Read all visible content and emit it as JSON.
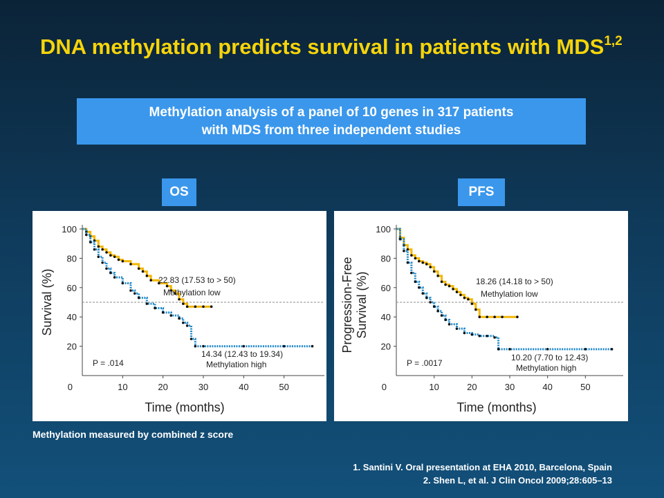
{
  "slide": {
    "title": "DNA methylation predicts survival in patients with MDS",
    "title_superscript": "1,2",
    "banner_line1": "Methylation analysis of a panel of 10 genes in 317 patients",
    "banner_line2": "with MDS from three independent studies",
    "note": "Methylation measured by combined z score",
    "ref1": "1. Santini V. Oral presentation at EHA 2010, Barcelona, Spain",
    "ref2": "2. Shen L, et al. J Clin Oncol 2009;28:605–13",
    "colors": {
      "title": "#f6d40a",
      "accent_box": "#3a97ec",
      "low": "#f2b705",
      "high": "#1e88c8"
    }
  },
  "chart_data": [
    {
      "type": "line",
      "panel_label": "OS",
      "xlabel": "Time (months)",
      "ylabel": "Survival (%)",
      "xlim": [
        0,
        58
      ],
      "ylim": [
        0,
        100
      ],
      "xticks": [
        0,
        10,
        20,
        30,
        40,
        50
      ],
      "yticks": [
        20,
        40,
        60,
        80,
        100
      ],
      "reference_line": 50,
      "p_value": "P = .014",
      "series": [
        {
          "name": "Methylation low",
          "median_label": "22.83 (17.53 to > 50)",
          "color": "#f2b705",
          "x": [
            0,
            1,
            2,
            3,
            4,
            5,
            6,
            7,
            8,
            9,
            10,
            12,
            14,
            15,
            16,
            17,
            19,
            21,
            22,
            23,
            24,
            25,
            26,
            28,
            30,
            32
          ],
          "y": [
            100,
            98,
            95,
            92,
            88,
            86,
            84,
            82,
            81,
            79,
            78,
            76,
            73,
            71,
            68,
            65,
            63,
            61,
            58,
            56,
            52,
            49,
            47,
            47,
            47,
            47
          ]
        },
        {
          "name": "Methylation high",
          "median_label": "14.34 (12.43 to 19.34)",
          "color": "#1e88c8",
          "x": [
            0,
            1,
            2,
            3,
            4,
            5,
            6,
            7,
            8,
            10,
            12,
            13,
            14,
            16,
            18,
            20,
            22,
            24,
            25,
            26,
            27,
            28,
            30,
            40,
            50,
            57
          ],
          "y": [
            100,
            96,
            91,
            86,
            81,
            77,
            73,
            70,
            67,
            63,
            58,
            56,
            53,
            49,
            46,
            43,
            41,
            39,
            36,
            34,
            25,
            20,
            20,
            20,
            20,
            20
          ]
        }
      ]
    },
    {
      "type": "line",
      "panel_label": "PFS",
      "xlabel": "Time (months)",
      "ylabel": "Progression-Free Survival (%)",
      "ylabel_line1": "Progression-Free",
      "ylabel_line2": "Survival (%)",
      "xlim": [
        0,
        58
      ],
      "ylim": [
        0,
        100
      ],
      "xticks": [
        0,
        10,
        20,
        30,
        40,
        50
      ],
      "yticks": [
        20,
        40,
        60,
        80,
        100
      ],
      "reference_line": 50,
      "p_value": "P = .0017",
      "series": [
        {
          "name": "Methylation low",
          "median_label": "18.26 (14.18 to > 50)",
          "color": "#f2b705",
          "x": [
            0,
            1,
            2,
            3,
            4,
            5,
            6,
            7,
            8,
            9,
            10,
            11,
            12,
            13,
            14,
            15,
            16,
            17,
            18,
            19,
            20,
            21,
            22,
            24,
            26,
            28,
            32
          ],
          "y": [
            100,
            94,
            89,
            86,
            82,
            80,
            78,
            77,
            76,
            74,
            71,
            68,
            64,
            62,
            61,
            59,
            57,
            55,
            53,
            52,
            49,
            45,
            40,
            40,
            40,
            40,
            40
          ]
        },
        {
          "name": "Methylation high",
          "median_label": "10.20 (7.70 to 12.43)",
          "color": "#1e88c8",
          "x": [
            0,
            1,
            2,
            3,
            4,
            5,
            6,
            7,
            8,
            9,
            10,
            11,
            12,
            13,
            14,
            16,
            18,
            20,
            22,
            24,
            26,
            27,
            30,
            40,
            50,
            57
          ],
          "y": [
            100,
            93,
            85,
            77,
            70,
            64,
            60,
            56,
            53,
            50,
            47,
            44,
            41,
            38,
            35,
            32,
            29,
            28,
            27,
            27,
            26,
            18,
            18,
            18,
            18,
            18
          ]
        }
      ]
    }
  ]
}
